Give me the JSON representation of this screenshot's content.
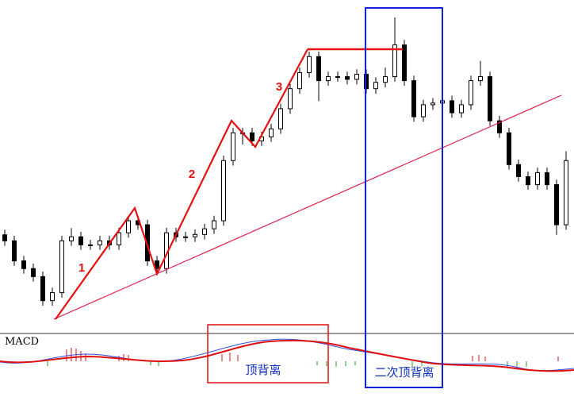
{
  "chart_data": {
    "type": "candlestick",
    "open": [
      30.0,
      28.2,
      22.2,
      19.9,
      17.5,
      10.3,
      12.7,
      28.2,
      29.4,
      27.0,
      27.0,
      28.2,
      27.0,
      30.6,
      34.2,
      33.0,
      22.2,
      19.9,
      30.6,
      29.4,
      29.4,
      30.1,
      31.8,
      34.2,
      52.2,
      60.5,
      60.5,
      58.1,
      59.3,
      61.7,
      67.7,
      73.7,
      78.5,
      83.3,
      76.1,
      77.3,
      77.3,
      76.5,
      78.0,
      73.7,
      75.6,
      77.3,
      86.8,
      76.1,
      65.3,
      68.9,
      69.4,
      70.1,
      66.5,
      68.9,
      76.1,
      77.3,
      64.1,
      60.5,
      51.0,
      47.4,
      45.0,
      48.6,
      45.0,
      33.0
    ],
    "high": [
      31.5,
      29.7,
      23.7,
      21.4,
      19.0,
      14.2,
      29.7,
      32.0,
      30.9,
      28.5,
      29.7,
      29.7,
      32.1,
      35.7,
      35.7,
      34.5,
      23.7,
      32.1,
      32.1,
      30.9,
      31.6,
      33.3,
      35.7,
      53.7,
      62.0,
      62.0,
      62.0,
      60.8,
      63.2,
      69.2,
      75.2,
      80.0,
      84.8,
      84.8,
      78.8,
      78.8,
      78.8,
      79.5,
      79.5,
      77.1,
      80.0,
      95.0,
      88.3,
      77.6,
      70.4,
      70.9,
      71.6,
      71.6,
      70.4,
      77.6,
      82.0,
      78.8,
      65.6,
      62.0,
      52.5,
      48.9,
      50.1,
      50.1,
      46.5,
      55.0
    ],
    "low": [
      26.7,
      20.7,
      18.4,
      16.0,
      8.8,
      8.8,
      11.2,
      26.7,
      25.5,
      25.5,
      25.5,
      25.5,
      25.5,
      29.1,
      31.5,
      20.7,
      18.4,
      18.4,
      27.9,
      27.9,
      27.9,
      28.6,
      30.3,
      32.7,
      50.7,
      57.0,
      56.6,
      56.6,
      57.8,
      60.2,
      66.2,
      72.2,
      77.0,
      70.0,
      74.6,
      75.8,
      75.0,
      75.0,
      72.2,
      72.2,
      74.1,
      75.8,
      74.6,
      63.8,
      63.8,
      67.4,
      67.9,
      65.0,
      65.0,
      67.4,
      74.6,
      62.6,
      59.0,
      49.5,
      45.9,
      43.5,
      43.5,
      43.5,
      30.0,
      31.5
    ],
    "close": [
      28.2,
      22.2,
      19.9,
      17.5,
      10.3,
      12.7,
      28.2,
      29.4,
      27.0,
      27.0,
      28.2,
      27.0,
      30.6,
      34.2,
      33.0,
      22.2,
      19.9,
      30.6,
      29.4,
      29.4,
      30.1,
      31.8,
      34.2,
      52.2,
      60.5,
      60.5,
      58.1,
      59.3,
      61.7,
      67.7,
      73.7,
      78.5,
      83.3,
      76.1,
      77.3,
      77.3,
      76.5,
      78.0,
      73.7,
      75.6,
      77.3,
      86.8,
      76.1,
      65.3,
      68.9,
      69.4,
      70.1,
      66.5,
      68.9,
      76.1,
      77.3,
      64.1,
      60.5,
      51.0,
      47.4,
      45.0,
      48.6,
      45.0,
      33.0,
      52.2
    ],
    "annotations": {
      "wave_1": "1",
      "wave_2": "2",
      "wave_3": "3",
      "indicator": "MACD",
      "divergence": "顶背离",
      "second_divergence": "二次顶背离"
    }
  }
}
